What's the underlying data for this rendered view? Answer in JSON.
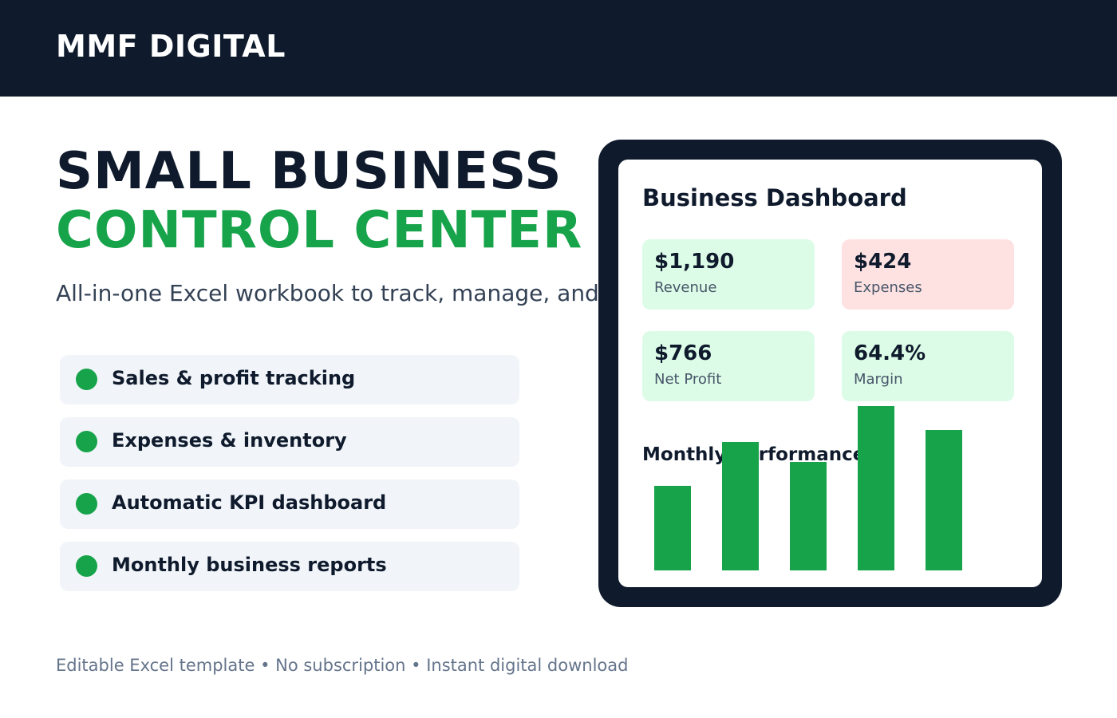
{
  "header": {
    "brand": "MMF DIGITAL"
  },
  "hero": {
    "line1": "SMALL BUSINESS",
    "line2": "CONTROL CENTER",
    "subtitle": "All-in-one Excel workbook to track, manage, and grow your business"
  },
  "features": [
    "Sales & profit tracking",
    "Expenses & inventory",
    "Automatic KPI dashboard",
    "Monthly business reports"
  ],
  "footer": {
    "text": "Editable Excel template • No subscription • Instant digital download"
  },
  "dashboard": {
    "title": "Business Dashboard",
    "kpis": [
      {
        "value": "$1,190",
        "label": "Revenue",
        "color": "#dcfce7"
      },
      {
        "value": "$424",
        "label": "Expenses",
        "color": "#fee2e2"
      },
      {
        "value": "$766",
        "label": "Net Profit",
        "color": "#dcfce7"
      },
      {
        "value": "64.4%",
        "label": "Margin",
        "color": "#dcfce7"
      }
    ],
    "performance_title": "Monthly Performance"
  },
  "chart_data": {
    "type": "bar",
    "values": [
      106,
      161,
      136,
      206,
      176
    ],
    "color": "#16a34a",
    "ylim": [
      0,
      206
    ]
  },
  "colors": {
    "navy": "#0f1b2d",
    "accent_green": "#16a34a",
    "feature_bg": "#f1f5f9"
  }
}
